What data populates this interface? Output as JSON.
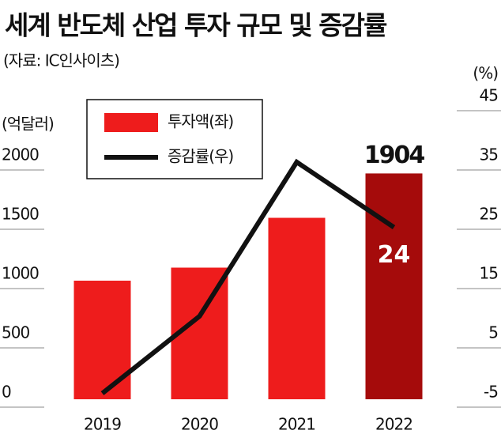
{
  "chart_data": {
    "type": "bar",
    "title": "세계 반도체 산업 투자 규모 및 증감률",
    "subtitle": "(자료: IC인사이츠)",
    "y_label": "(억달러)",
    "y2_label": "(%)",
    "categories": [
      "2019",
      "2020",
      "2021",
      "2022"
    ],
    "series": [
      {
        "name": "투자액(좌)",
        "type": "bar",
        "colors": [
          "#ee1c1c",
          "#ee1c1c",
          "#ee1c1c",
          "#a50b0b"
        ],
        "values": [
          1000,
          1110,
          1530,
          1904
        ],
        "labeled": [
          false,
          false,
          false,
          true
        ]
      },
      {
        "name": "증감률(우)",
        "type": "line",
        "axis": "y2",
        "color": "#111111",
        "values": [
          -4,
          9,
          35,
          24
        ],
        "labeled": [
          false,
          false,
          false,
          true
        ]
      }
    ],
    "ylim": [
      0,
      2500
    ],
    "yticks": [
      0,
      500,
      1000,
      1500,
      2000
    ],
    "y2lim": [
      -5,
      45
    ],
    "y2ticks": [
      -5,
      5,
      15,
      25,
      35,
      45
    ]
  }
}
